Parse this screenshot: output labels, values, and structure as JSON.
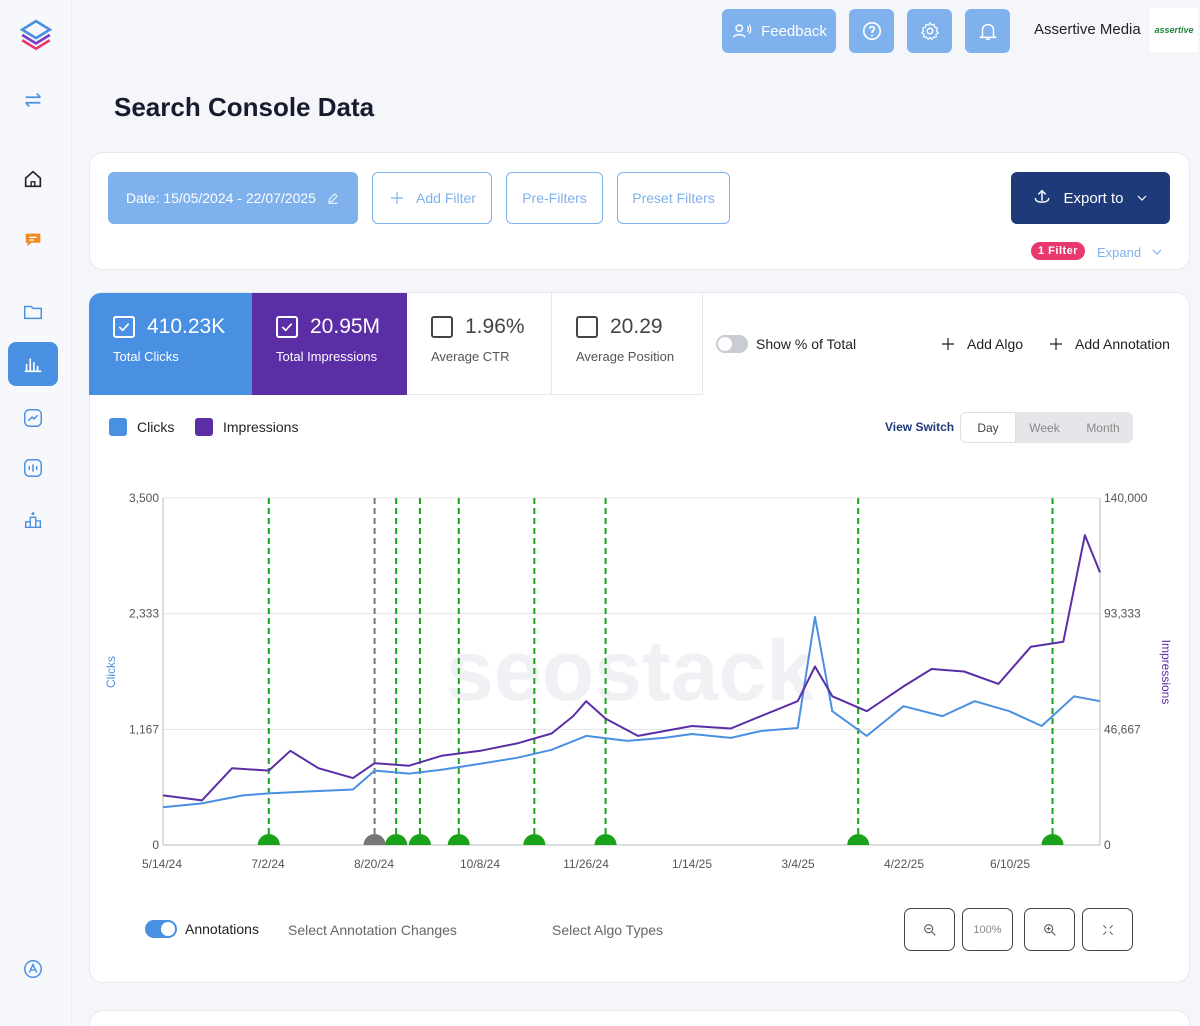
{
  "sidebar": {
    "items": [
      {
        "name": "toggle-sidebar-icon"
      },
      {
        "name": "home-icon"
      },
      {
        "name": "chat-icon"
      },
      {
        "name": "folder-icon"
      },
      {
        "name": "bar-chart-icon"
      },
      {
        "name": "trend-icon"
      },
      {
        "name": "pulse-icon"
      },
      {
        "name": "ranking-icon"
      },
      {
        "name": "settings-circle-icon"
      }
    ]
  },
  "header": {
    "feedback_label": "Feedback",
    "company_name": "Assertive Media",
    "logo_text": "assertive"
  },
  "page": {
    "title": "Search Console Data"
  },
  "filters": {
    "date_label": "Date: 15/05/2024 - 22/07/2025",
    "add_filter_label": "Add Filter",
    "pre_filters_label": "Pre-Filters",
    "preset_filters_label": "Preset Filters",
    "export_label": "Export to",
    "filter_badge": "1 Filter",
    "expand_label": "Expand"
  },
  "metrics": [
    {
      "value": "410.23K",
      "label": "Total Clicks",
      "checked": true
    },
    {
      "value": "20.95M",
      "label": "Total Impressions",
      "checked": true
    },
    {
      "value": "1.96%",
      "label": "Average CTR",
      "checked": false
    },
    {
      "value": "20.29",
      "label": "Average Position",
      "checked": false
    }
  ],
  "controls": {
    "show_percent_label": "Show % of Total",
    "add_algo_label": "Add Algo",
    "add_annotation_label": "Add Annotation",
    "view_switch_label": "View Switch",
    "view_options": [
      "Day",
      "Week",
      "Month"
    ],
    "view_selected": "Day"
  },
  "bottom": {
    "annotations_label": "Annotations",
    "select_annotation_label": "Select Annotation Changes",
    "select_algo_label": "Select Algo Types",
    "zoom_reset_label": "100%"
  },
  "colors": {
    "clicks": "#4a90e2",
    "impressions": "#5b2ea6",
    "annotation_green": "#1aa31a",
    "annotation_gray": "#777777",
    "accent": "#1e3a78"
  },
  "chart_data": {
    "type": "line",
    "legend": [
      "Clicks",
      "Impressions"
    ],
    "ylabel": "Clicks",
    "y2label": "Impressions",
    "ylim": [
      0,
      3500
    ],
    "y2lim": [
      0,
      140000
    ],
    "yticks": [
      "3,500",
      "2,333",
      "1,167",
      "0"
    ],
    "y2ticks": [
      "140,000",
      "93,333",
      "46,667",
      "0"
    ],
    "xticks": [
      "5/14/24",
      "7/2/24",
      "8/20/24",
      "10/8/24",
      "11/26/24",
      "1/14/25",
      "3/4/25",
      "4/22/25",
      "6/10/25"
    ],
    "x_start": "2024-05-14",
    "x_end": "2025-07-22",
    "series": [
      {
        "name": "Clicks",
        "axis": "left",
        "points": [
          [
            "2024-05-14",
            380
          ],
          [
            "2024-06-01",
            420
          ],
          [
            "2024-06-20",
            500
          ],
          [
            "2024-07-02",
            520
          ],
          [
            "2024-07-20",
            540
          ],
          [
            "2024-08-10",
            560
          ],
          [
            "2024-08-20",
            750
          ],
          [
            "2024-09-05",
            720
          ],
          [
            "2024-09-20",
            760
          ],
          [
            "2024-10-08",
            820
          ],
          [
            "2024-10-25",
            880
          ],
          [
            "2024-11-10",
            960
          ],
          [
            "2024-11-26",
            1100
          ],
          [
            "2024-12-15",
            1050
          ],
          [
            "2025-01-01",
            1080
          ],
          [
            "2025-01-14",
            1120
          ],
          [
            "2025-02-01",
            1080
          ],
          [
            "2025-02-15",
            1150
          ],
          [
            "2025-03-04",
            1180
          ],
          [
            "2025-03-12",
            2300
          ],
          [
            "2025-03-20",
            1350
          ],
          [
            "2025-04-05",
            1100
          ],
          [
            "2025-04-22",
            1400
          ],
          [
            "2025-05-10",
            1300
          ],
          [
            "2025-05-25",
            1450
          ],
          [
            "2025-06-10",
            1350
          ],
          [
            "2025-06-25",
            1200
          ],
          [
            "2025-07-10",
            1500
          ],
          [
            "2025-07-22",
            1450
          ]
        ]
      },
      {
        "name": "Impressions",
        "axis": "right",
        "points": [
          [
            "2024-05-14",
            20000
          ],
          [
            "2024-06-01",
            18000
          ],
          [
            "2024-06-15",
            31000
          ],
          [
            "2024-07-02",
            30000
          ],
          [
            "2024-07-12",
            38000
          ],
          [
            "2024-07-25",
            31000
          ],
          [
            "2024-08-10",
            27000
          ],
          [
            "2024-08-20",
            33000
          ],
          [
            "2024-09-05",
            32000
          ],
          [
            "2024-09-20",
            36000
          ],
          [
            "2024-10-08",
            38000
          ],
          [
            "2024-10-25",
            41000
          ],
          [
            "2024-11-10",
            45000
          ],
          [
            "2024-11-20",
            52000
          ],
          [
            "2024-11-26",
            58000
          ],
          [
            "2024-12-05",
            51000
          ],
          [
            "2024-12-20",
            44000
          ],
          [
            "2025-01-14",
            48000
          ],
          [
            "2025-02-01",
            47000
          ],
          [
            "2025-02-15",
            52000
          ],
          [
            "2025-03-04",
            58000
          ],
          [
            "2025-03-12",
            72000
          ],
          [
            "2025-03-20",
            60000
          ],
          [
            "2025-04-05",
            54000
          ],
          [
            "2025-04-22",
            64000
          ],
          [
            "2025-05-05",
            71000
          ],
          [
            "2025-05-20",
            70000
          ],
          [
            "2025-06-05",
            65000
          ],
          [
            "2025-06-20",
            80000
          ],
          [
            "2025-07-05",
            82000
          ],
          [
            "2025-07-15",
            125000
          ],
          [
            "2025-07-22",
            110000
          ]
        ]
      }
    ],
    "annotations": [
      {
        "date": "2024-07-02",
        "color": "green"
      },
      {
        "date": "2024-08-20",
        "color": "gray"
      },
      {
        "date": "2024-08-30",
        "color": "green"
      },
      {
        "date": "2024-09-10",
        "color": "green"
      },
      {
        "date": "2024-09-28",
        "color": "green"
      },
      {
        "date": "2024-11-02",
        "color": "green"
      },
      {
        "date": "2024-12-05",
        "color": "green"
      },
      {
        "date": "2025-04-01",
        "color": "green"
      },
      {
        "date": "2025-06-30",
        "color": "green"
      }
    ],
    "watermark": "seostack",
    "grid": true
  }
}
